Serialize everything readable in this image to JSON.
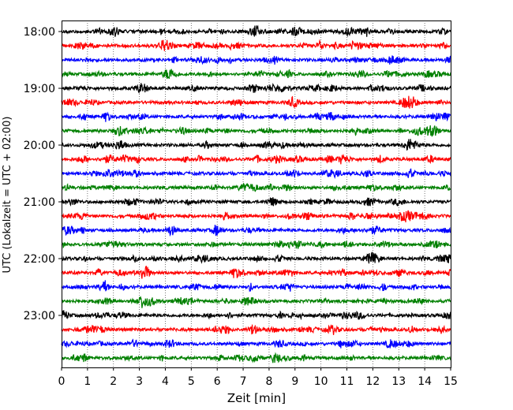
{
  "chart_data": {
    "type": "line",
    "title": "",
    "xlabel": "Zeit  [min]",
    "ylabel": "UTC (Lokalzeit = UTC + 02:00)",
    "xlim": [
      0,
      15
    ],
    "x_ticks": [
      0,
      1,
      2,
      3,
      4,
      5,
      6,
      7,
      8,
      9,
      10,
      11,
      12,
      13,
      14,
      15
    ],
    "grid": "vertical dotted",
    "legend": "none",
    "trace_minutes": 15,
    "trace_colors": [
      "#000000",
      "#ff0000",
      "#0000ff",
      "#008000"
    ],
    "traces": [
      "18:00",
      "18:15",
      "18:30",
      "18:45",
      "19:00",
      "19:15",
      "19:30",
      "19:45",
      "20:00",
      "20:15",
      "20:30",
      "20:45",
      "21:00",
      "21:15",
      "21:30",
      "21:45",
      "22:00",
      "22:15",
      "22:30",
      "22:45",
      "23:00",
      "23:15",
      "23:30",
      "23:45"
    ],
    "y_tick_labels": [
      "18:00",
      "19:00",
      "20:00",
      "21:00",
      "22:00",
      "23:00"
    ]
  }
}
